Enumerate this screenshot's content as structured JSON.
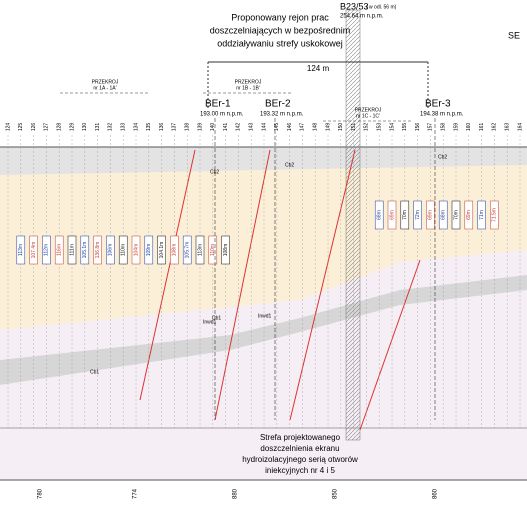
{
  "header": {
    "title_lines": [
      "Proponowany rejon prac",
      "doszczelniających w bezpośrednim",
      "oddziaływaniu strefy uskokowej"
    ],
    "width_label": "124 m",
    "direction": "SE",
    "borehole": "B23/53",
    "borehole_note": "( w odl. 56 m)",
    "borehole_elevation": "254.64 m n.p.m."
  },
  "sections": [
    {
      "title": "PRZEKROJ",
      "label": "nr 1A - 1A'"
    },
    {
      "title": "PRZEKROJ",
      "label": "nr 1B - 1B'"
    },
    {
      "title": "PRZEKROJ",
      "label": "nr 1C - 1C'"
    }
  ],
  "boreholes": [
    {
      "name": "BEr-1",
      "elevation": "193.00 m n.p.m."
    },
    {
      "name": "BEr-2",
      "elevation": "193.32 m n.p.m."
    },
    {
      "name": "BEr-3",
      "elevation": "194.38 m n.p.m."
    }
  ],
  "stations": [
    "124",
    "125",
    "126",
    "127",
    "128",
    "129",
    "130",
    "131",
    "132",
    "133",
    "134",
    "135",
    "136",
    "137",
    "138",
    "139",
    "140",
    "141",
    "142",
    "143",
    "144",
    "145",
    "146",
    "147",
    "148",
    "149",
    "150",
    "151",
    "152",
    "153",
    "154",
    "155",
    "156",
    "157",
    "158",
    "159",
    "160",
    "161",
    "162",
    "163",
    "164"
  ],
  "depths": [
    {
      "text": "113m",
      "color": "#1a3aa0"
    },
    {
      "text": "107.4m",
      "color": "#c0392b"
    },
    {
      "text": "112m",
      "color": "#1a3aa0"
    },
    {
      "text": "116m",
      "color": "#c0392b"
    },
    {
      "text": "111m",
      "color": "#111"
    },
    {
      "text": "105.1m",
      "color": "#1a3aa0"
    },
    {
      "text": "136.8m",
      "color": "#c0392b"
    },
    {
      "text": "106m",
      "color": "#1a3aa0"
    },
    {
      "text": "110m",
      "color": "#111"
    },
    {
      "text": "104m",
      "color": "#c0392b"
    },
    {
      "text": "109m",
      "color": "#1a3aa0"
    },
    {
      "text": "104.1m",
      "color": "#111"
    },
    {
      "text": "108m",
      "color": "#c0392b"
    },
    {
      "text": "105.7m",
      "color": "#1a3aa0"
    },
    {
      "text": "113m",
      "color": "#111"
    },
    {
      "text": "110m",
      "color": "#c0392b"
    },
    {
      "text": "108m",
      "color": "#111"
    },
    {
      "text": "68m",
      "color": "#1a3aa0"
    },
    {
      "text": "69m",
      "color": "#c0392b"
    },
    {
      "text": "70m",
      "color": "#111"
    },
    {
      "text": "72m",
      "color": "#1a3aa0"
    },
    {
      "text": "69m",
      "color": "#c0392b"
    },
    {
      "text": "68m",
      "color": "#1a3aa0"
    },
    {
      "text": "70m",
      "color": "#111"
    },
    {
      "text": "69m",
      "color": "#c0392b"
    },
    {
      "text": "71m",
      "color": "#1a3aa0"
    },
    {
      "text": "71.5m",
      "color": "#c0392b"
    }
  ],
  "layers": [
    "Cb2",
    "Cb2",
    "Cb2",
    "Cb1",
    "Cb1",
    "Inwd1",
    "Inwd1"
  ],
  "annotation_lines": [
    "Strefa projektowanego",
    "doszczelnienia ekranu",
    "hydroizolacyjnego serią otworów",
    "iniekcyjnych nr 4 i 5"
  ],
  "bottom_axis": [
    "780",
    "774",
    "880",
    "850",
    "860"
  ]
}
